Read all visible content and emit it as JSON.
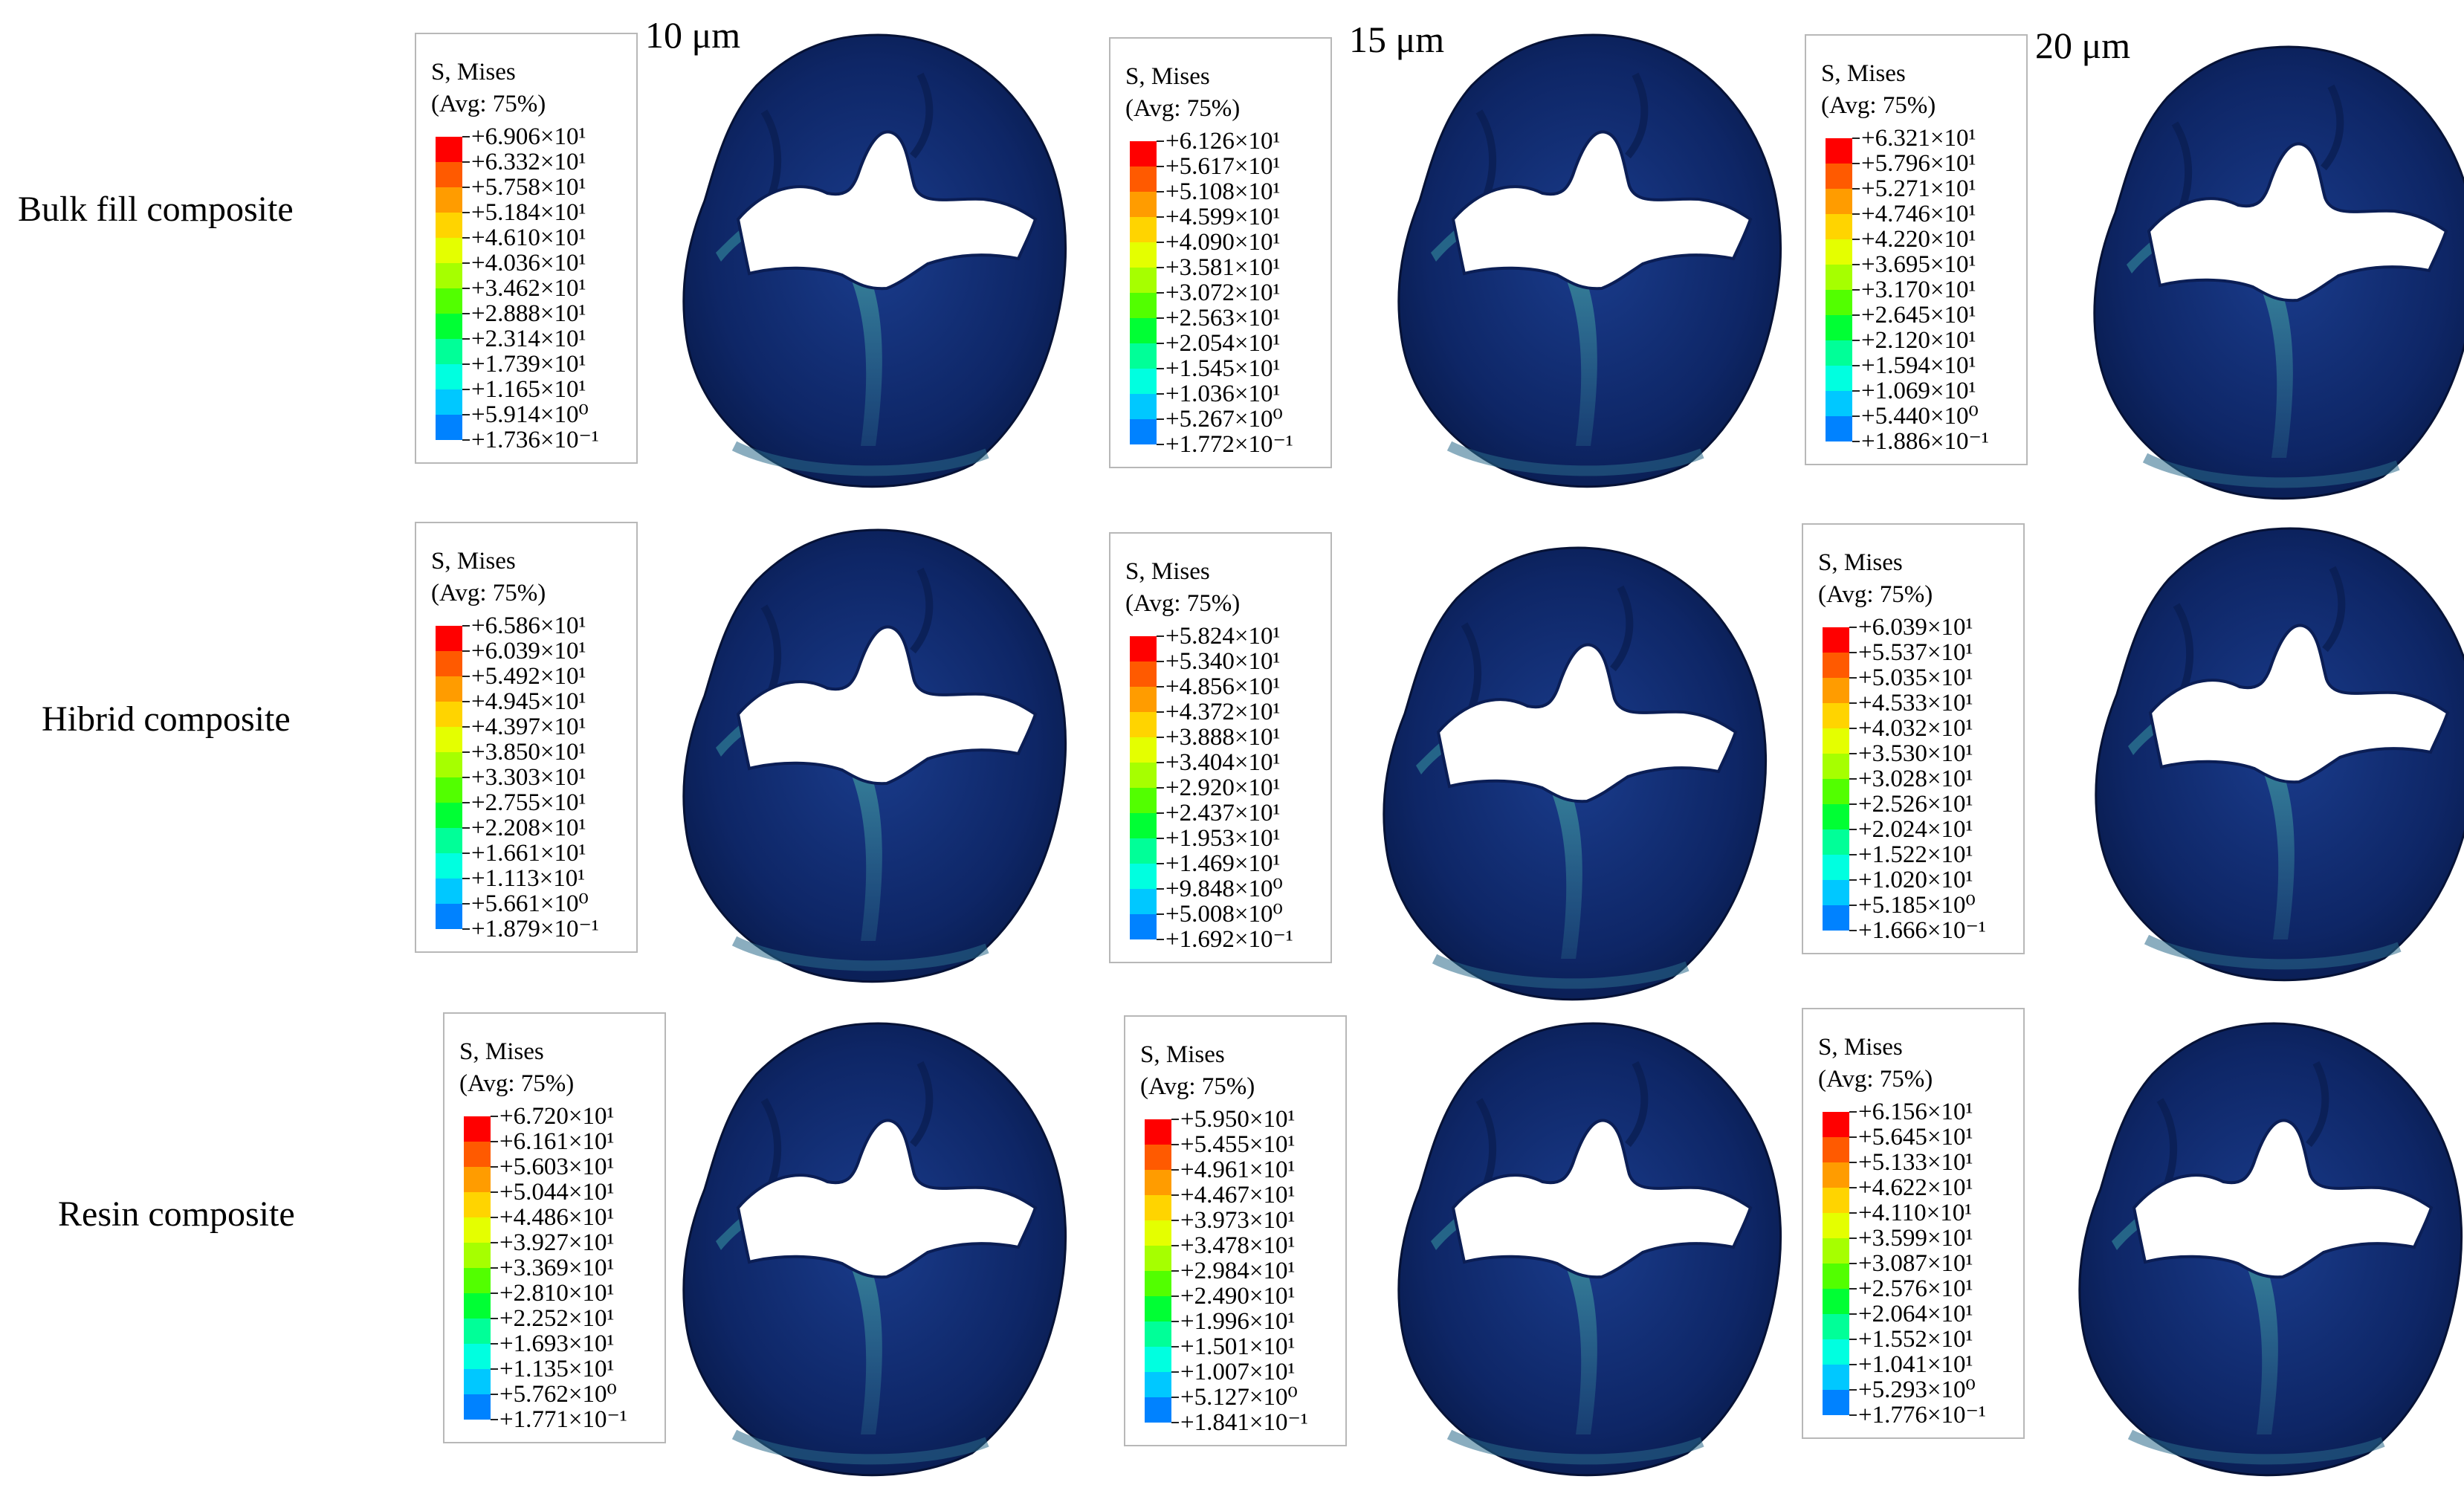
{
  "columns": [
    "10 μm",
    "15 μm",
    "20 μm"
  ],
  "rows": [
    "Bulk fill composite",
    "Hibrid composite",
    "Resin composite"
  ],
  "legend_title_1": "S, Mises",
  "legend_title_2": "(Avg: 75%)",
  "contour_colors": [
    "#ff0000",
    "#ff5a00",
    "#ff9c00",
    "#ffd400",
    "#e4ff00",
    "#a6ff00",
    "#52ff00",
    "#00ff34",
    "#00ff98",
    "#00ffe0",
    "#00c8ff",
    "#0082ff",
    "#0000ff"
  ],
  "legends": [
    [
      [
        "+6.906×10¹",
        "+6.332×10¹",
        "+5.758×10¹",
        "+5.184×10¹",
        "+4.610×10¹",
        "+4.036×10¹",
        "+3.462×10¹",
        "+2.888×10¹",
        "+2.314×10¹",
        "+1.739×10¹",
        "+1.165×10¹",
        "+5.914×10⁰",
        "+1.736×10⁻¹"
      ],
      [
        "+6.126×10¹",
        "+5.617×10¹",
        "+5.108×10¹",
        "+4.599×10¹",
        "+4.090×10¹",
        "+3.581×10¹",
        "+3.072×10¹",
        "+2.563×10¹",
        "+2.054×10¹",
        "+1.545×10¹",
        "+1.036×10¹",
        "+5.267×10⁰",
        "+1.772×10⁻¹"
      ],
      [
        "+6.321×10¹",
        "+5.796×10¹",
        "+5.271×10¹",
        "+4.746×10¹",
        "+4.220×10¹",
        "+3.695×10¹",
        "+3.170×10¹",
        "+2.645×10¹",
        "+2.120×10¹",
        "+1.594×10¹",
        "+1.069×10¹",
        "+5.440×10⁰",
        "+1.886×10⁻¹"
      ]
    ],
    [
      [
        "+6.586×10¹",
        "+6.039×10¹",
        "+5.492×10¹",
        "+4.945×10¹",
        "+4.397×10¹",
        "+3.850×10¹",
        "+3.303×10¹",
        "+2.755×10¹",
        "+2.208×10¹",
        "+1.661×10¹",
        "+1.113×10¹",
        "+5.661×10⁰",
        "+1.879×10⁻¹"
      ],
      [
        "+5.824×10¹",
        "+5.340×10¹",
        "+4.856×10¹",
        "+4.372×10¹",
        "+3.888×10¹",
        "+3.404×10¹",
        "+2.920×10¹",
        "+2.437×10¹",
        "+1.953×10¹",
        "+1.469×10¹",
        "+9.848×10⁰",
        "+5.008×10⁰",
        "+1.692×10⁻¹"
      ],
      [
        "+6.039×10¹",
        "+5.537×10¹",
        "+5.035×10¹",
        "+4.533×10¹",
        "+4.032×10¹",
        "+3.530×10¹",
        "+3.028×10¹",
        "+2.526×10¹",
        "+2.024×10¹",
        "+1.522×10¹",
        "+1.020×10¹",
        "+5.185×10⁰",
        "+1.666×10⁻¹"
      ]
    ],
    [
      [
        "+6.720×10¹",
        "+6.161×10¹",
        "+5.603×10¹",
        "+5.044×10¹",
        "+4.486×10¹",
        "+3.927×10¹",
        "+3.369×10¹",
        "+2.810×10¹",
        "+2.252×10¹",
        "+1.693×10¹",
        "+1.135×10¹",
        "+5.762×10⁰",
        "+1.771×10⁻¹"
      ],
      [
        "+5.950×10¹",
        "+5.455×10¹",
        "+4.961×10¹",
        "+4.467×10¹",
        "+3.973×10¹",
        "+3.478×10¹",
        "+2.984×10¹",
        "+2.490×10¹",
        "+1.996×10¹",
        "+1.501×10¹",
        "+1.007×10¹",
        "+5.127×10⁰",
        "+1.841×10⁻¹"
      ],
      [
        "+6.156×10¹",
        "+5.645×10¹",
        "+5.133×10¹",
        "+4.622×10¹",
        "+4.110×10¹",
        "+3.599×10¹",
        "+3.087×10¹",
        "+2.576×10¹",
        "+2.064×10¹",
        "+1.552×10¹",
        "+1.041×10¹",
        "+5.293×10⁰",
        "+1.776×10⁻¹"
      ]
    ]
  ]
}
